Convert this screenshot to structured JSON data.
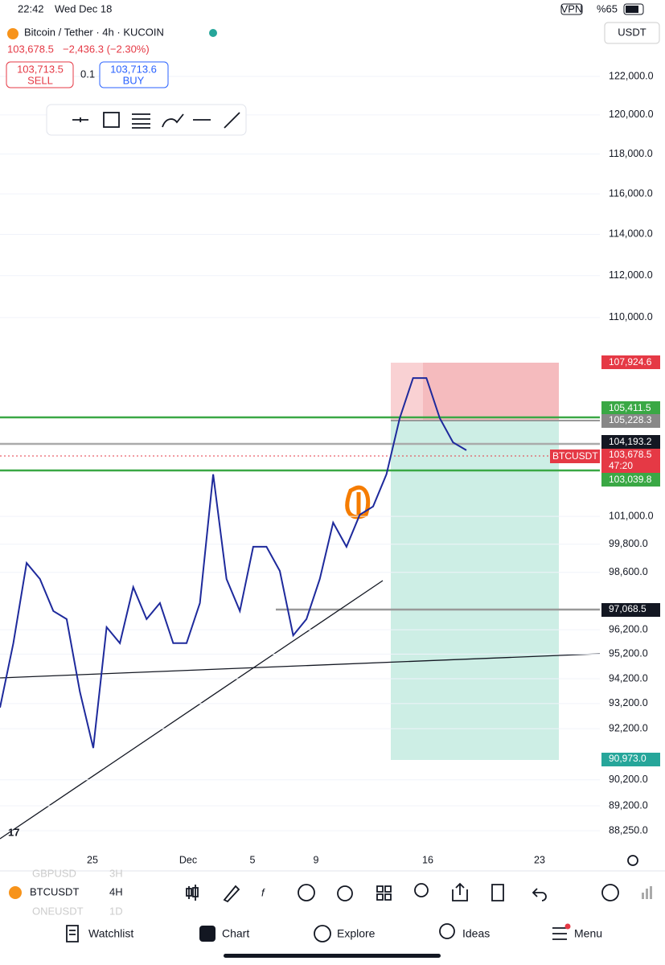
{
  "status_bar": {
    "time": "22:42",
    "date": "Wed Dec 18",
    "vpn": "VPN",
    "battery": "%65"
  },
  "header": {
    "symbol_title": "Bitcoin / Tether · 4h · KUCOIN",
    "last_price": "103,678.5",
    "change": "−2,436.3 (−2.30%)",
    "sell_price": "103,713.5",
    "sell_label": "SELL",
    "quantity": "0.1",
    "buy_price": "103,713.6",
    "buy_label": "BUY",
    "currency": "USDT"
  },
  "chart_data": {
    "type": "line",
    "log_scale": true,
    "color": "#1e2a9c",
    "values": [
      93040,
      95650,
      99000,
      98320,
      96980,
      96640,
      93670,
      91440,
      96310,
      95650,
      97980,
      96640,
      97310,
      95650,
      95650,
      97310,
      102840,
      98320,
      96980,
      99690,
      99690,
      98660,
      95970,
      96640,
      98320,
      100730,
      99690,
      101070,
      101430,
      102840,
      105350,
      107180,
      107180,
      105350,
      104260,
      103910
    ],
    "ylim": [
      88250,
      122000
    ],
    "yticks": [
      {
        "value": 122000,
        "label": "122,000.0"
      },
      {
        "value": 120000,
        "label": "120,000.0"
      },
      {
        "value": 118000,
        "label": "118,000.0"
      },
      {
        "value": 116000,
        "label": "116,000.0"
      },
      {
        "value": 114000,
        "label": "114,000.0"
      },
      {
        "value": 112000,
        "label": "112,000.0"
      },
      {
        "value": 110000,
        "label": "110,000.0"
      },
      {
        "value": 101000,
        "label": "101,000.0"
      },
      {
        "value": 99800,
        "label": "99,800.0"
      },
      {
        "value": 98600,
        "label": "98,600.0"
      },
      {
        "value": 96200,
        "label": "96,200.0"
      },
      {
        "value": 95200,
        "label": "95,200.0"
      },
      {
        "value": 94200,
        "label": "94,200.0"
      },
      {
        "value": 93200,
        "label": "93,200.0"
      },
      {
        "value": 92200,
        "label": "92,200.0"
      },
      {
        "value": 90200,
        "label": "90,200.0"
      },
      {
        "value": 89200,
        "label": "89,200.0"
      },
      {
        "value": 88250,
        "label": "88,250.0"
      }
    ],
    "time_labels": [
      "25",
      "Dec",
      "5",
      "9",
      "16",
      "23"
    ],
    "grid": true
  },
  "price_labels": {
    "stop": "107,924.6",
    "upper_line": "105,411.5",
    "entry": "105,228.3",
    "level": "104,193.2",
    "symbol_tag": "BTCUSDT",
    "current": "103,678.5",
    "countdown": "47:20",
    "lower_line": "103,039.8",
    "support": "97,068.5",
    "target": "90,973.0"
  },
  "toolbar": {
    "symbol": "BTCUSDT",
    "interval": "4H",
    "bg_symbol_1": "GBPUSD",
    "bg_interval_1": "3H",
    "bg_symbol_2": "ONEUSDT",
    "bg_interval_2": "1D"
  },
  "nav": [
    "Watchlist",
    "Chart",
    "Explore",
    "Ideas",
    "Menu"
  ]
}
